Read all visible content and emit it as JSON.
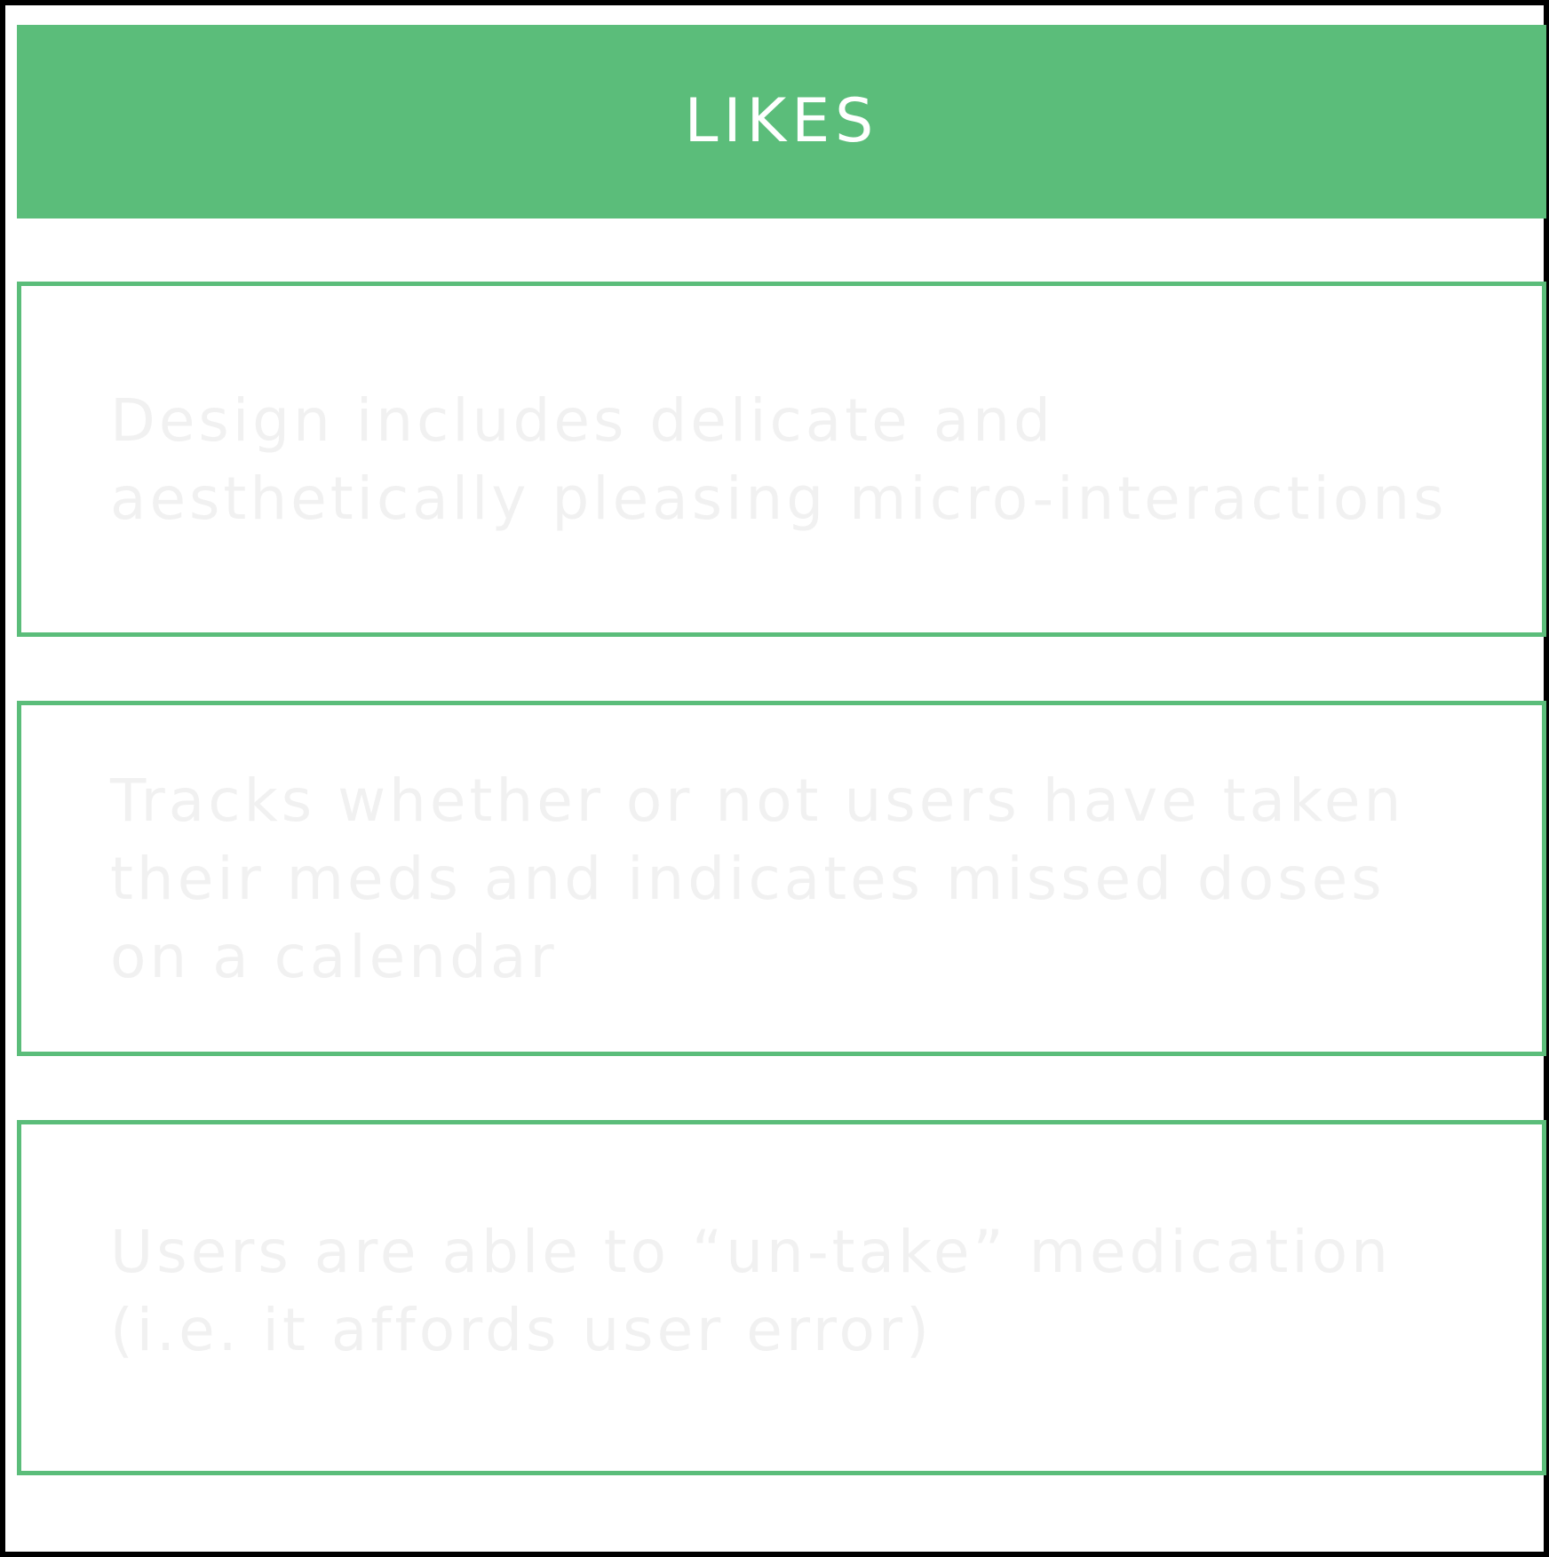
{
  "header": {
    "title": "LIKES"
  },
  "cards": [
    {
      "text": "Design includes delicate and\naesthetically pleasing micro-interactions"
    },
    {
      "text": "Tracks whether or not users have taken\ntheir meds and indicates missed doses\non a calendar"
    },
    {
      "text": "Users are able to “un-take” medication\n(i.e. it affords user error)"
    }
  ],
  "colors": {
    "accent": "#5bbd7a",
    "header_text": "#ffffff",
    "card_text": "#f1f1f1",
    "frame_border": "#000000"
  }
}
